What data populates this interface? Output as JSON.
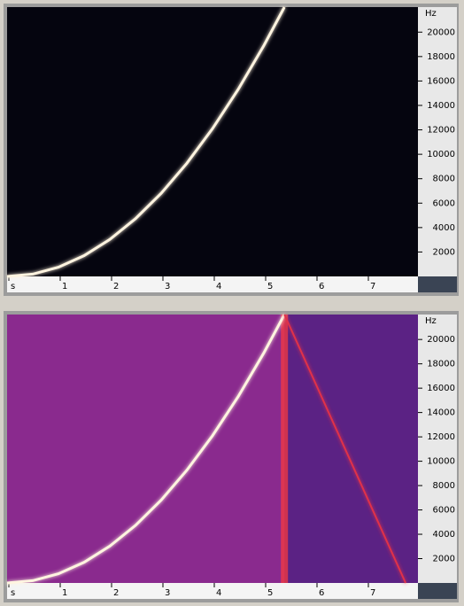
{
  "chart_data": [
    {
      "type": "line",
      "background": "#05050f",
      "ylabel": "Hz",
      "xlim": [
        0,
        8
      ],
      "xticks": [
        {
          "value": 0,
          "label": "s"
        },
        1,
        2,
        3,
        4,
        5,
        6,
        7
      ],
      "ylim": [
        0,
        22050
      ],
      "yticks": [
        2000,
        4000,
        6000,
        8000,
        10000,
        12000,
        14000,
        16000,
        18000,
        20000
      ],
      "series": [
        {
          "color": "#fff4e0",
          "x": [
            0,
            0.5,
            1,
            1.5,
            2,
            2.5,
            3,
            3.5,
            4,
            4.5,
            5,
            5.4
          ],
          "values": [
            0,
            189,
            756,
            1701,
            3025,
            4726,
            6806,
            9263,
            12099,
            15313,
            18904,
            22050
          ]
        }
      ]
    },
    {
      "type": "line",
      "background": "#8a2a8e",
      "ylabel": "Hz",
      "xlim": [
        0,
        8
      ],
      "xticks": [
        {
          "value": 0,
          "label": "s"
        },
        1,
        2,
        3,
        4,
        5,
        6,
        7
      ],
      "ylim": [
        0,
        22050
      ],
      "yticks": [
        2000,
        4000,
        6000,
        8000,
        10000,
        12000,
        14000,
        16000,
        18000,
        20000
      ],
      "series": [
        {
          "color": "#fff4e0",
          "x": [
            0,
            0.5,
            1,
            1.5,
            2,
            2.5,
            3,
            3.5,
            4,
            4.5,
            5,
            5.4
          ],
          "values": [
            0,
            189,
            756,
            1701,
            3025,
            4726,
            6806,
            9263,
            12099,
            15313,
            18904,
            22050
          ]
        },
        {
          "color": "#e0304a",
          "x": [
            5.4,
            7.76
          ],
          "values": [
            22050,
            0
          ]
        }
      ]
    }
  ]
}
